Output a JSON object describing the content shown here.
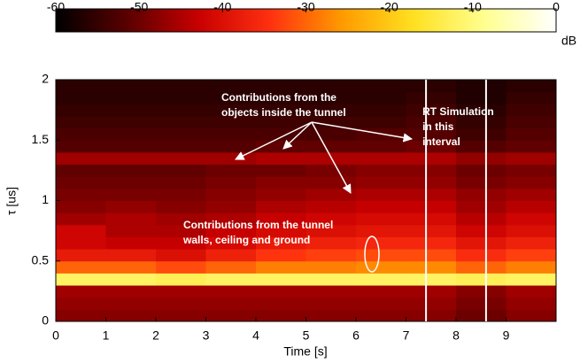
{
  "chart_data": {
    "type": "heatmap",
    "xlabel": "Time [s]",
    "ylabel": "τ [us]",
    "xlim": [
      0,
      10
    ],
    "ylim": [
      0,
      2
    ],
    "xticks": [
      0,
      1,
      2,
      3,
      4,
      5,
      6,
      7,
      8,
      9
    ],
    "yticks": [
      0,
      0.5,
      1,
      1.5,
      2
    ],
    "clim": [
      -60,
      0
    ],
    "cticks": [
      -60,
      -50,
      -40,
      -30,
      -20,
      -10,
      0
    ],
    "clabel": "dB",
    "colormap": [
      "#000000",
      "#5a0000",
      "#c80000",
      "#ff3010",
      "#ff9a00",
      "#ffe020",
      "#ffff90",
      "#ffffff"
    ],
    "z": [
      [
        -48,
        -48,
        -48,
        -48,
        -48,
        -48,
        -48,
        -48,
        -50,
        -48
      ],
      [
        -47,
        -47,
        -47,
        -47,
        -47,
        -47,
        -47,
        -47,
        -49,
        -47
      ],
      [
        -46,
        -46,
        -46,
        -46,
        -46,
        -46,
        -46,
        -46,
        -48,
        -46
      ],
      [
        -12,
        -12,
        -13,
        -12,
        -12,
        -12,
        -12,
        -12,
        -13,
        -12
      ],
      [
        -30,
        -30,
        -32,
        -30,
        -28,
        -28,
        -27,
        -27,
        -30,
        -28
      ],
      [
        -38,
        -38,
        -40,
        -37,
        -34,
        -33,
        -32,
        -32,
        -35,
        -33
      ],
      [
        -42,
        -43,
        -43,
        -41,
        -38,
        -37,
        -36,
        -36,
        -39,
        -37
      ],
      [
        -42,
        -45,
        -45,
        -43,
        -41,
        -40,
        -39,
        -39,
        -42,
        -40
      ],
      [
        -46,
        -45,
        -46,
        -45,
        -43,
        -42,
        -41,
        -41,
        -44,
        -42
      ],
      [
        -48,
        -47,
        -48,
        -47,
        -45,
        -44,
        -43,
        -43,
        -46,
        -44
      ],
      [
        -49,
        -49,
        -49,
        -48,
        -47,
        -46,
        -45,
        -45,
        -47,
        -46
      ],
      [
        -50,
        -50,
        -50,
        -49,
        -48,
        -48,
        -47,
        -47,
        -49,
        -48
      ],
      [
        -51,
        -51,
        -51,
        -50,
        -50,
        -49,
        -48,
        -48,
        -50,
        -49
      ],
      [
        -46,
        -46,
        -46,
        -46,
        -45,
        -45,
        -45,
        -45,
        -47,
        -46
      ],
      [
        -52,
        -52,
        -52,
        -52,
        -51,
        -51,
        -51,
        -50,
        -52,
        -51
      ],
      [
        -53,
        -53,
        -53,
        -53,
        -53,
        -53,
        -52,
        -52,
        -54,
        -52
      ],
      [
        -54,
        -54,
        -54,
        -54,
        -54,
        -54,
        -54,
        -53,
        -55,
        -53
      ],
      [
        -55,
        -55,
        -55,
        -55,
        -55,
        -55,
        -55,
        -54,
        -56,
        -54
      ],
      [
        -56,
        -56,
        -56,
        -56,
        -56,
        -56,
        -56,
        -55,
        -57,
        -55
      ],
      [
        -56,
        -56,
        -56,
        -56,
        -56,
        -56,
        -56,
        -56,
        -57,
        -56
      ]
    ],
    "highlight": {
      "x": [
        7.4,
        8.6
      ],
      "lines": [
        "RT Simulation",
        "in this",
        "interval"
      ]
    },
    "annotations": [
      {
        "lines": [
          "Contributions from the",
          "objects inside the tunnel"
        ]
      },
      {
        "lines": [
          "Contributions from the tunnel",
          "walls, ceiling and ground"
        ]
      }
    ]
  }
}
